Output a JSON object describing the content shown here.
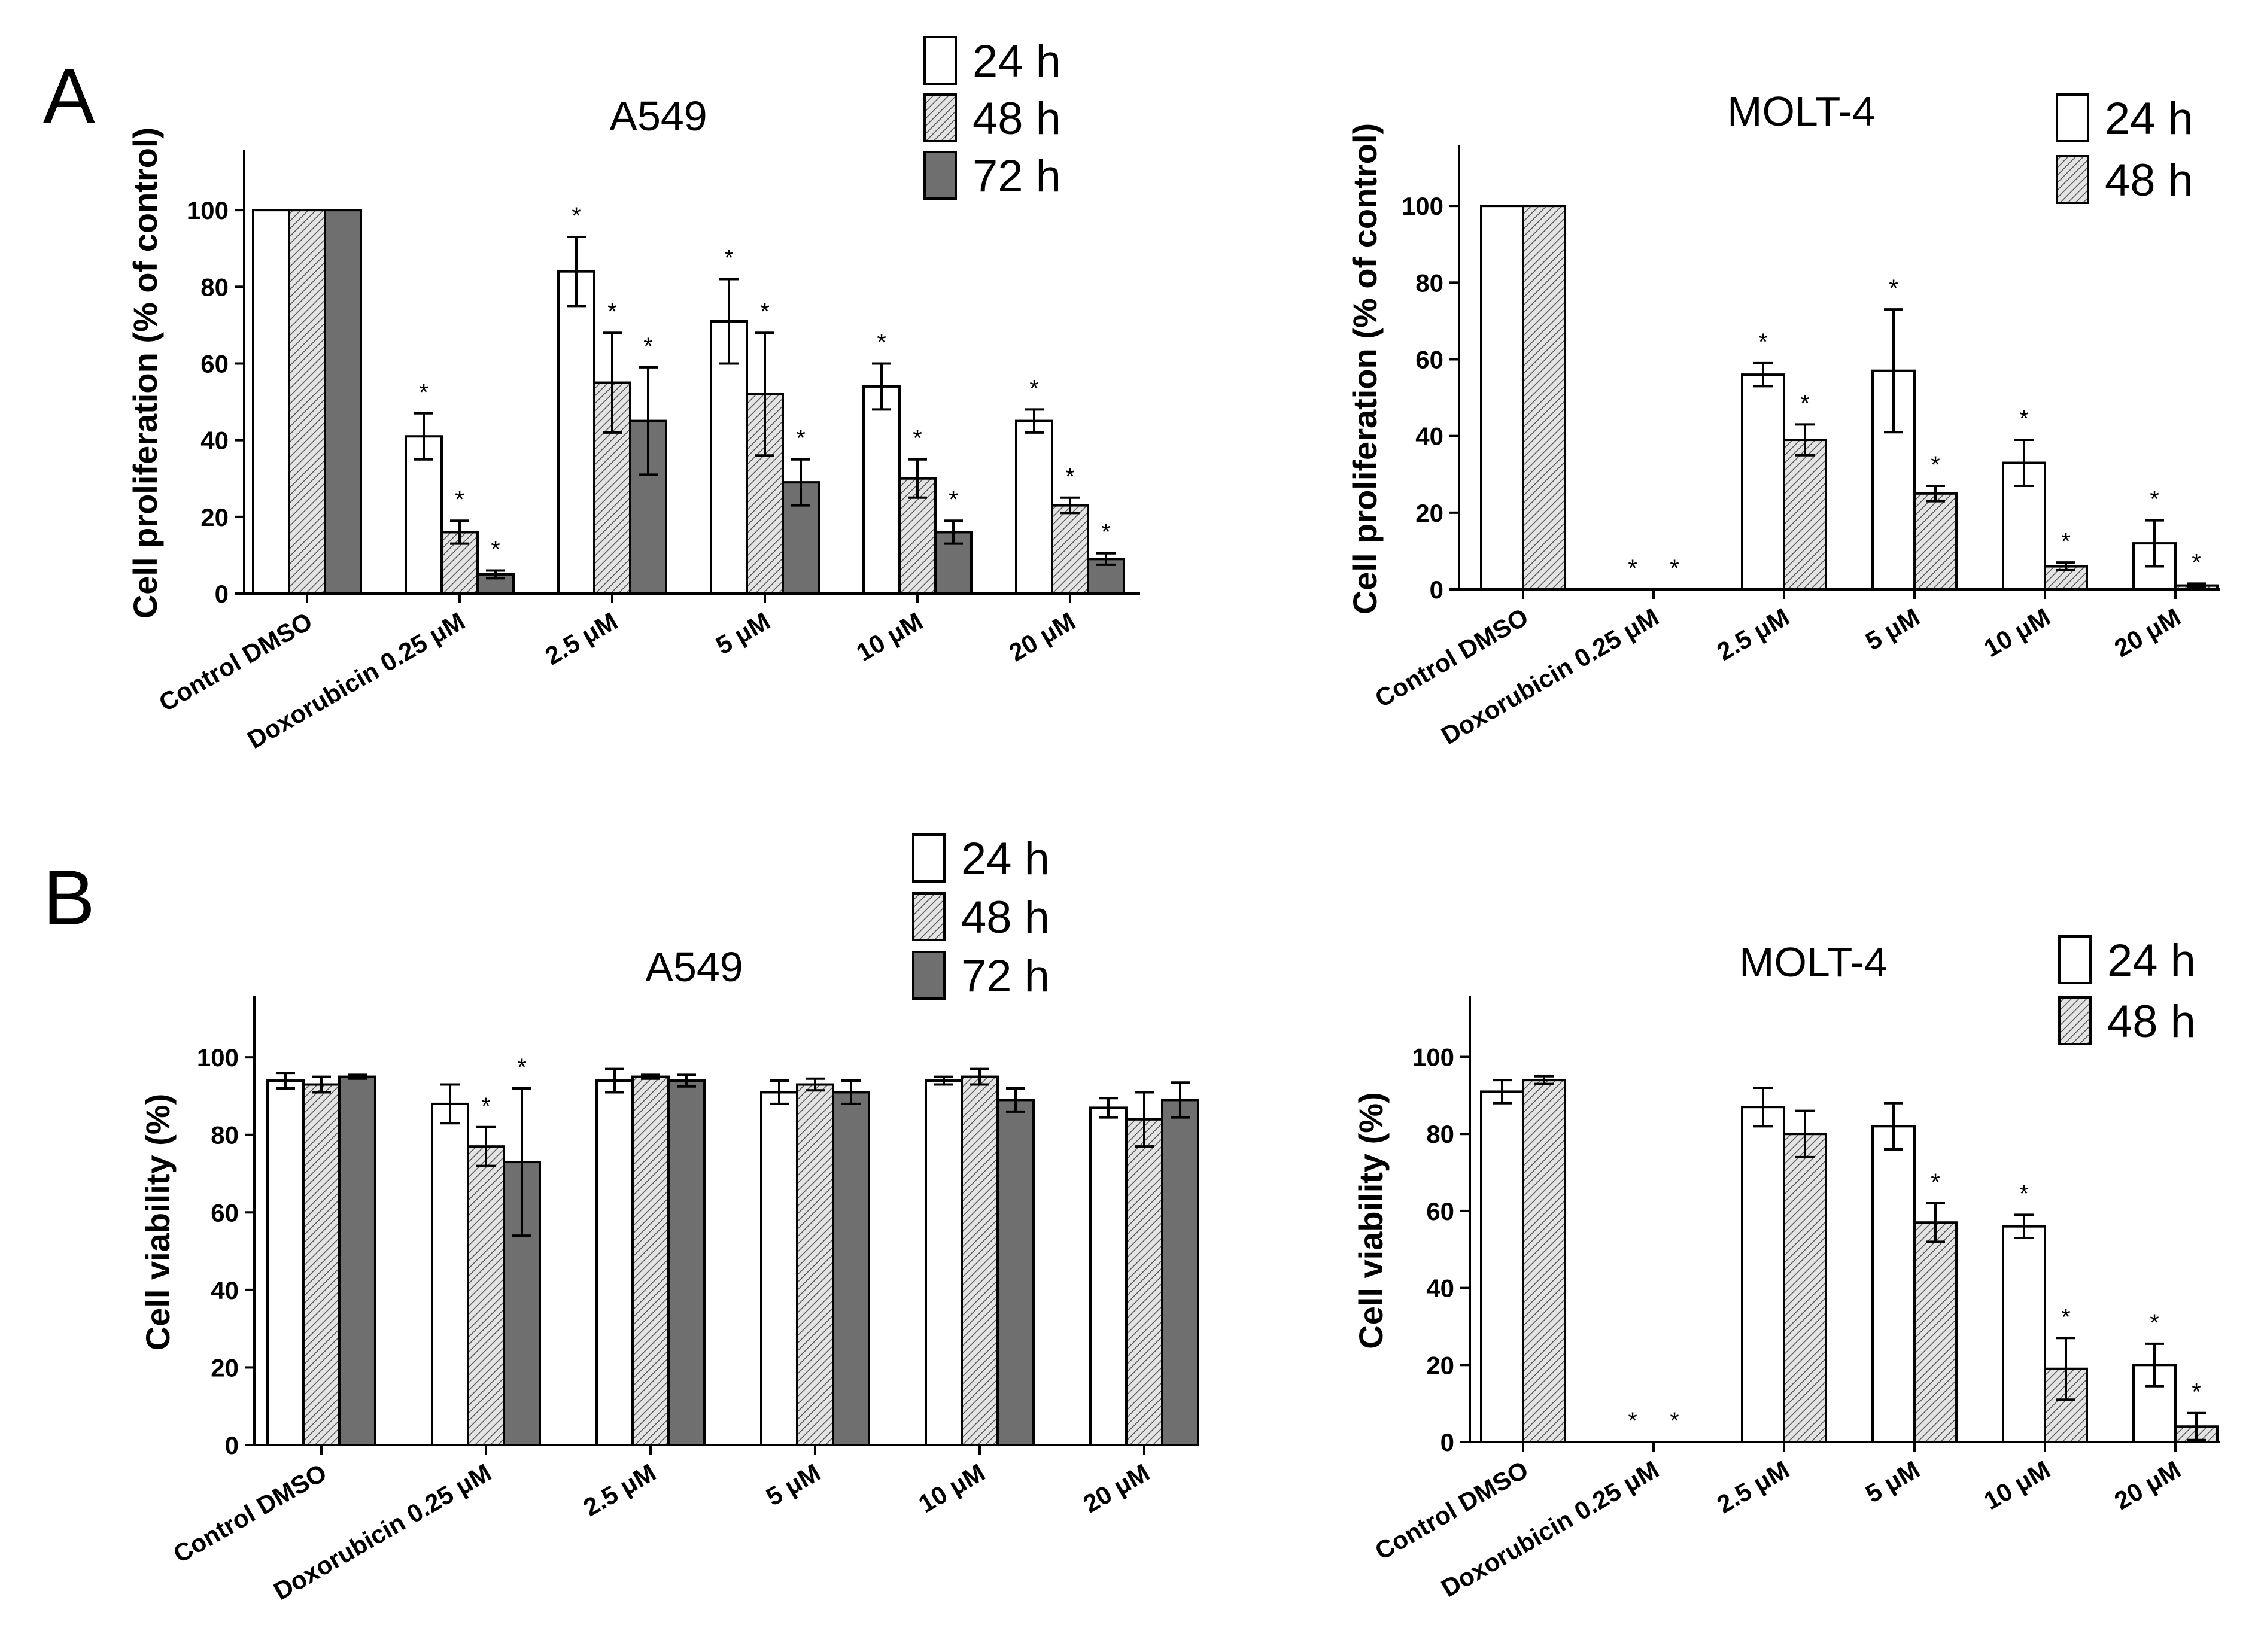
{
  "figure": {
    "panel_labels": [
      "A",
      "B"
    ],
    "legend_labels": [
      "24 h",
      "48 h",
      "72 h"
    ],
    "colors": {
      "h24": "#ffffff",
      "h48": "#dcdcdc",
      "h72": "#6f6f6f",
      "axis": "#000000"
    }
  },
  "chart_data": [
    {
      "type": "bar",
      "panel": "A",
      "title": "A549",
      "ylabel": "Cell proliferation (% of control)",
      "ylim": [
        0,
        115
      ],
      "yticks": [
        0,
        20,
        40,
        60,
        80,
        100
      ],
      "categories": [
        "Control DMSO",
        "Doxorubicin 0.25 μM",
        "2.5 μM",
        "5 μM",
        "10 μM",
        "20 μM"
      ],
      "series": [
        {
          "name": "24 h",
          "values": [
            100,
            41,
            84,
            71,
            54,
            45
          ],
          "errors": [
            0,
            6,
            9,
            11,
            6,
            3
          ],
          "significant": [
            false,
            true,
            true,
            true,
            true,
            true
          ]
        },
        {
          "name": "48 h",
          "values": [
            100,
            16,
            55,
            52,
            30,
            23
          ],
          "errors": [
            0,
            3,
            13,
            16,
            5,
            2
          ],
          "significant": [
            false,
            true,
            true,
            true,
            true,
            true
          ]
        },
        {
          "name": "72 h",
          "values": [
            100,
            5,
            45,
            29,
            16,
            9
          ],
          "errors": [
            0,
            1,
            14,
            6,
            3,
            1.5
          ],
          "significant": [
            false,
            true,
            true,
            true,
            true,
            true
          ]
        }
      ]
    },
    {
      "type": "bar",
      "panel": "A",
      "title": "MOLT-4",
      "ylabel": "Cell proliferation (% of control)",
      "ylim": [
        0,
        115
      ],
      "yticks": [
        0,
        20,
        40,
        60,
        80,
        100
      ],
      "categories": [
        "Control DMSO",
        "Doxorubicin 0.25 μM",
        "2.5 μM",
        "5 μM",
        "10 μM",
        "20 μM"
      ],
      "series": [
        {
          "name": "24 h",
          "values": [
            100,
            0,
            56,
            57,
            33,
            12
          ],
          "errors": [
            0,
            0,
            3,
            16,
            6,
            6
          ],
          "significant": [
            false,
            true,
            true,
            true,
            true,
            true
          ]
        },
        {
          "name": "48 h",
          "values": [
            100,
            0,
            39,
            25,
            6,
            1
          ],
          "errors": [
            0,
            0,
            4,
            2,
            1,
            0.5
          ],
          "significant": [
            false,
            true,
            true,
            true,
            true,
            true
          ]
        }
      ]
    },
    {
      "type": "bar",
      "panel": "B",
      "title": "A549",
      "ylabel": "Cell viability (%)",
      "ylim": [
        0,
        115
      ],
      "yticks": [
        0,
        20,
        40,
        60,
        80,
        100
      ],
      "categories": [
        "Control DMSO",
        "Doxorubicin 0.25 μM",
        "2.5 μM",
        "5 μM",
        "10 μM",
        "20 μM"
      ],
      "series": [
        {
          "name": "24 h",
          "values": [
            94,
            88,
            94,
            91,
            94,
            87
          ],
          "errors": [
            2,
            5,
            3,
            3,
            1,
            2.5
          ],
          "significant": [
            false,
            false,
            false,
            false,
            false,
            false
          ]
        },
        {
          "name": "48 h",
          "values": [
            93,
            77,
            95,
            93,
            95,
            84
          ],
          "errors": [
            2,
            5,
            0.5,
            1.5,
            2,
            7
          ],
          "significant": [
            false,
            true,
            false,
            false,
            false,
            false
          ]
        },
        {
          "name": "72 h",
          "values": [
            95,
            73,
            94,
            91,
            89,
            89
          ],
          "errors": [
            0.5,
            19,
            1.5,
            3,
            3,
            4.5
          ],
          "significant": [
            false,
            true,
            false,
            false,
            false,
            false
          ]
        }
      ]
    },
    {
      "type": "bar",
      "panel": "B",
      "title": "MOLT-4",
      "ylabel": "Cell viability (%)",
      "ylim": [
        0,
        115
      ],
      "yticks": [
        0,
        20,
        40,
        60,
        80,
        100
      ],
      "categories": [
        "Control DMSO",
        "Doxorubicin 0.25 μM",
        "2.5 μM",
        "5 μM",
        "10 μM",
        "20 μM"
      ],
      "series": [
        {
          "name": "24 h",
          "values": [
            91,
            0,
            87,
            82,
            56,
            20
          ],
          "errors": [
            3,
            0,
            5,
            6,
            3,
            5.5
          ],
          "significant": [
            false,
            true,
            false,
            false,
            true,
            true
          ]
        },
        {
          "name": "48 h",
          "values": [
            94,
            0,
            80,
            57,
            19,
            4
          ],
          "errors": [
            1,
            0,
            6,
            5,
            8,
            3.5
          ],
          "significant": [
            false,
            true,
            false,
            true,
            true,
            true
          ]
        }
      ]
    }
  ]
}
